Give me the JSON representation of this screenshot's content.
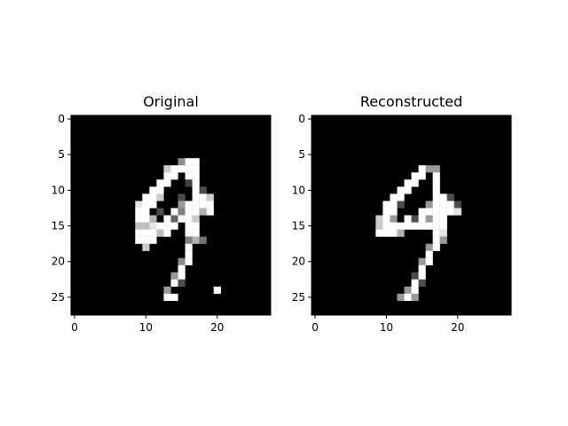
{
  "figure": {
    "background": "#ffffff"
  },
  "chart_data": [
    {
      "type": "heatmap",
      "title": "Original",
      "colormap": "gray",
      "value_range": [
        0,
        1
      ],
      "shape": [
        28,
        28
      ],
      "xlim": [
        -0.5,
        27.5
      ],
      "ylim": [
        27.5,
        -0.5
      ],
      "x_ticks": [
        0,
        10,
        20
      ],
      "y_ticks": [
        0,
        5,
        10,
        15,
        20,
        25
      ],
      "grid": false,
      "pixels": [
        {
          "r": 6,
          "c": 15,
          "v": 0.55
        },
        {
          "r": 6,
          "c": 16,
          "v": 1
        },
        {
          "r": 6,
          "c": 17,
          "v": 1
        },
        {
          "r": 7,
          "c": 13,
          "v": 0.8
        },
        {
          "r": 7,
          "c": 14,
          "v": 1
        },
        {
          "r": 7,
          "c": 15,
          "v": 1
        },
        {
          "r": 7,
          "c": 16,
          "v": 1
        },
        {
          "r": 7,
          "c": 17,
          "v": 1
        },
        {
          "r": 8,
          "c": 13,
          "v": 1
        },
        {
          "r": 8,
          "c": 14,
          "v": 1
        },
        {
          "r": 8,
          "c": 16,
          "v": 1
        },
        {
          "r": 8,
          "c": 17,
          "v": 1
        },
        {
          "r": 9,
          "c": 12,
          "v": 1
        },
        {
          "r": 9,
          "c": 13,
          "v": 1
        },
        {
          "r": 9,
          "c": 16,
          "v": 0.25
        },
        {
          "r": 9,
          "c": 17,
          "v": 1
        },
        {
          "r": 10,
          "c": 11,
          "v": 1
        },
        {
          "r": 10,
          "c": 12,
          "v": 1
        },
        {
          "r": 10,
          "c": 17,
          "v": 1
        },
        {
          "r": 10,
          "c": 18,
          "v": 0.3
        },
        {
          "r": 11,
          "c": 10,
          "v": 1
        },
        {
          "r": 11,
          "c": 11,
          "v": 1
        },
        {
          "r": 11,
          "c": 12,
          "v": 0.8
        },
        {
          "r": 11,
          "c": 15,
          "v": 0.3
        },
        {
          "r": 11,
          "c": 17,
          "v": 1
        },
        {
          "r": 11,
          "c": 18,
          "v": 1
        },
        {
          "r": 11,
          "c": 19,
          "v": 0.8
        },
        {
          "r": 12,
          "c": 9,
          "v": 0.9
        },
        {
          "r": 12,
          "c": 10,
          "v": 1
        },
        {
          "r": 12,
          "c": 11,
          "v": 1
        },
        {
          "r": 12,
          "c": 15,
          "v": 0.6
        },
        {
          "r": 12,
          "c": 16,
          "v": 1
        },
        {
          "r": 12,
          "c": 17,
          "v": 1
        },
        {
          "r": 12,
          "c": 18,
          "v": 1
        },
        {
          "r": 12,
          "c": 19,
          "v": 1
        },
        {
          "r": 13,
          "c": 9,
          "v": 1
        },
        {
          "r": 13,
          "c": 10,
          "v": 1
        },
        {
          "r": 13,
          "c": 12,
          "v": 0.3
        },
        {
          "r": 13,
          "c": 14,
          "v": 1
        },
        {
          "r": 13,
          "c": 15,
          "v": 0.5
        },
        {
          "r": 13,
          "c": 16,
          "v": 1
        },
        {
          "r": 13,
          "c": 17,
          "v": 1
        },
        {
          "r": 13,
          "c": 18,
          "v": 0.7
        },
        {
          "r": 13,
          "c": 19,
          "v": 1
        },
        {
          "r": 14,
          "c": 9,
          "v": 1
        },
        {
          "r": 14,
          "c": 10,
          "v": 1
        },
        {
          "r": 14,
          "c": 11,
          "v": 0.7
        },
        {
          "r": 14,
          "c": 13,
          "v": 1
        },
        {
          "r": 14,
          "c": 14,
          "v": 0.4
        },
        {
          "r": 14,
          "c": 15,
          "v": 1
        },
        {
          "r": 14,
          "c": 16,
          "v": 1
        },
        {
          "r": 14,
          "c": 17,
          "v": 0.8
        },
        {
          "r": 15,
          "c": 9,
          "v": 0.75
        },
        {
          "r": 15,
          "c": 10,
          "v": 0.75
        },
        {
          "r": 15,
          "c": 11,
          "v": 0.9
        },
        {
          "r": 15,
          "c": 12,
          "v": 1
        },
        {
          "r": 15,
          "c": 13,
          "v": 1
        },
        {
          "r": 15,
          "c": 14,
          "v": 1
        },
        {
          "r": 15,
          "c": 16,
          "v": 1
        },
        {
          "r": 15,
          "c": 17,
          "v": 1
        },
        {
          "r": 16,
          "c": 9,
          "v": 1
        },
        {
          "r": 16,
          "c": 10,
          "v": 1
        },
        {
          "r": 16,
          "c": 11,
          "v": 1
        },
        {
          "r": 16,
          "c": 12,
          "v": 0.75
        },
        {
          "r": 16,
          "c": 13,
          "v": 1
        },
        {
          "r": 16,
          "c": 16,
          "v": 1
        },
        {
          "r": 16,
          "c": 17,
          "v": 1
        },
        {
          "r": 17,
          "c": 9,
          "v": 1
        },
        {
          "r": 17,
          "c": 10,
          "v": 1
        },
        {
          "r": 17,
          "c": 11,
          "v": 1
        },
        {
          "r": 17,
          "c": 16,
          "v": 0.5
        },
        {
          "r": 17,
          "c": 17,
          "v": 0.7
        },
        {
          "r": 17,
          "c": 18,
          "v": 0.45
        },
        {
          "r": 18,
          "c": 10,
          "v": 0.8
        },
        {
          "r": 18,
          "c": 16,
          "v": 1
        },
        {
          "r": 19,
          "c": 16,
          "v": 1
        },
        {
          "r": 20,
          "c": 15,
          "v": 0.55
        },
        {
          "r": 20,
          "c": 16,
          "v": 1
        },
        {
          "r": 21,
          "c": 15,
          "v": 1
        },
        {
          "r": 22,
          "c": 14,
          "v": 0.6
        },
        {
          "r": 22,
          "c": 15,
          "v": 1
        },
        {
          "r": 23,
          "c": 14,
          "v": 1
        },
        {
          "r": 23,
          "c": 15,
          "v": 0.3
        },
        {
          "r": 24,
          "c": 13,
          "v": 0.6
        },
        {
          "r": 24,
          "c": 20,
          "v": 1
        },
        {
          "r": 25,
          "c": 13,
          "v": 1
        },
        {
          "r": 25,
          "c": 14,
          "v": 1
        }
      ]
    },
    {
      "type": "heatmap",
      "title": "Reconstructed",
      "colormap": "gray",
      "value_range": [
        0,
        1
      ],
      "shape": [
        28,
        28
      ],
      "xlim": [
        -0.5,
        27.5
      ],
      "ylim": [
        27.5,
        -0.5
      ],
      "x_ticks": [
        0,
        10,
        20
      ],
      "y_ticks": [
        0,
        5,
        10,
        15,
        20,
        25
      ],
      "grid": false,
      "pixels": [
        {
          "r": 7,
          "c": 15,
          "v": 1
        },
        {
          "r": 7,
          "c": 16,
          "v": 0.6
        },
        {
          "r": 7,
          "c": 17,
          "v": 0.6
        },
        {
          "r": 8,
          "c": 14,
          "v": 1
        },
        {
          "r": 8,
          "c": 15,
          "v": 1
        },
        {
          "r": 8,
          "c": 17,
          "v": 1
        },
        {
          "r": 9,
          "c": 13,
          "v": 1
        },
        {
          "r": 9,
          "c": 14,
          "v": 1
        },
        {
          "r": 9,
          "c": 17,
          "v": 1
        },
        {
          "r": 10,
          "c": 12,
          "v": 1
        },
        {
          "r": 10,
          "c": 13,
          "v": 1
        },
        {
          "r": 10,
          "c": 17,
          "v": 1
        },
        {
          "r": 11,
          "c": 11,
          "v": 1
        },
        {
          "r": 11,
          "c": 12,
          "v": 1
        },
        {
          "r": 11,
          "c": 17,
          "v": 1
        },
        {
          "r": 11,
          "c": 18,
          "v": 1
        },
        {
          "r": 11,
          "c": 19,
          "v": 0.3
        },
        {
          "r": 12,
          "c": 10,
          "v": 1
        },
        {
          "r": 12,
          "c": 11,
          "v": 1
        },
        {
          "r": 12,
          "c": 12,
          "v": 0.3
        },
        {
          "r": 12,
          "c": 16,
          "v": 0.6
        },
        {
          "r": 12,
          "c": 17,
          "v": 1
        },
        {
          "r": 12,
          "c": 18,
          "v": 1
        },
        {
          "r": 12,
          "c": 19,
          "v": 1
        },
        {
          "r": 12,
          "c": 20,
          "v": 0.3
        },
        {
          "r": 13,
          "c": 10,
          "v": 1
        },
        {
          "r": 13,
          "c": 11,
          "v": 1
        },
        {
          "r": 13,
          "c": 15,
          "v": 1
        },
        {
          "r": 13,
          "c": 16,
          "v": 1
        },
        {
          "r": 13,
          "c": 17,
          "v": 1
        },
        {
          "r": 13,
          "c": 18,
          "v": 1
        },
        {
          "r": 13,
          "c": 19,
          "v": 1
        },
        {
          "r": 13,
          "c": 20,
          "v": 0.9
        },
        {
          "r": 14,
          "c": 9,
          "v": 0.8
        },
        {
          "r": 14,
          "c": 10,
          "v": 1
        },
        {
          "r": 14,
          "c": 11,
          "v": 0.6
        },
        {
          "r": 14,
          "c": 13,
          "v": 1
        },
        {
          "r": 14,
          "c": 14,
          "v": 0.3
        },
        {
          "r": 14,
          "c": 15,
          "v": 1
        },
        {
          "r": 14,
          "c": 16,
          "v": 0.6
        },
        {
          "r": 14,
          "c": 17,
          "v": 1
        },
        {
          "r": 14,
          "c": 18,
          "v": 1
        },
        {
          "r": 15,
          "c": 9,
          "v": 0.8
        },
        {
          "r": 15,
          "c": 10,
          "v": 1
        },
        {
          "r": 15,
          "c": 11,
          "v": 1
        },
        {
          "r": 15,
          "c": 12,
          "v": 1
        },
        {
          "r": 15,
          "c": 13,
          "v": 1
        },
        {
          "r": 15,
          "c": 14,
          "v": 1
        },
        {
          "r": 15,
          "c": 15,
          "v": 1
        },
        {
          "r": 15,
          "c": 16,
          "v": 1
        },
        {
          "r": 15,
          "c": 17,
          "v": 1
        },
        {
          "r": 15,
          "c": 18,
          "v": 1
        },
        {
          "r": 16,
          "c": 9,
          "v": 1
        },
        {
          "r": 16,
          "c": 10,
          "v": 1
        },
        {
          "r": 16,
          "c": 11,
          "v": 1
        },
        {
          "r": 16,
          "c": 12,
          "v": 0.7
        },
        {
          "r": 16,
          "c": 17,
          "v": 1
        },
        {
          "r": 16,
          "c": 18,
          "v": 0.9
        },
        {
          "r": 17,
          "c": 17,
          "v": 1
        },
        {
          "r": 17,
          "c": 18,
          "v": 0.6
        },
        {
          "r": 18,
          "c": 16,
          "v": 0.6
        },
        {
          "r": 18,
          "c": 17,
          "v": 1
        },
        {
          "r": 19,
          "c": 16,
          "v": 1
        },
        {
          "r": 20,
          "c": 15,
          "v": 0.6
        },
        {
          "r": 20,
          "c": 16,
          "v": 1
        },
        {
          "r": 21,
          "c": 15,
          "v": 1
        },
        {
          "r": 22,
          "c": 14,
          "v": 0.3
        },
        {
          "r": 22,
          "c": 15,
          "v": 1
        },
        {
          "r": 23,
          "c": 14,
          "v": 1
        },
        {
          "r": 23,
          "c": 15,
          "v": 0.3
        },
        {
          "r": 24,
          "c": 13,
          "v": 0.6
        },
        {
          "r": 24,
          "c": 14,
          "v": 1
        },
        {
          "r": 25,
          "c": 12,
          "v": 0.6
        },
        {
          "r": 25,
          "c": 13,
          "v": 1
        },
        {
          "r": 25,
          "c": 14,
          "v": 0.6
        }
      ]
    }
  ]
}
